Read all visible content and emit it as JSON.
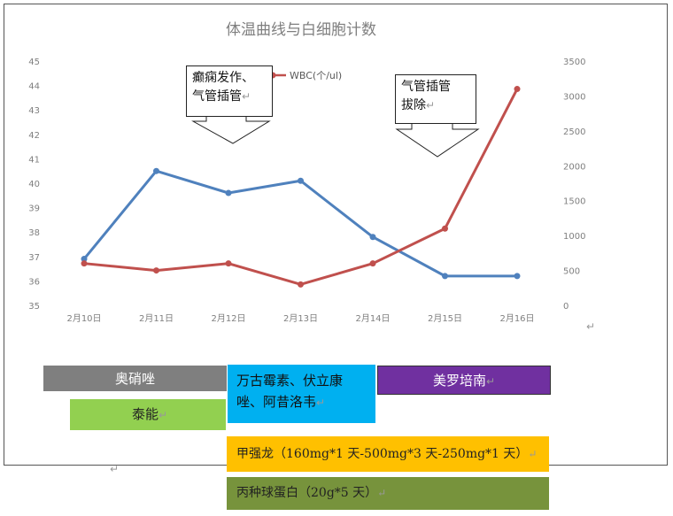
{
  "chart_data": {
    "type": "line",
    "title": "体温曲线与白细胞计数",
    "categories": [
      "2月10日",
      "2月11日",
      "2月12日",
      "2月13日",
      "2月14日",
      "2月15日",
      "2月16日"
    ],
    "y_left": {
      "min": 35,
      "max": 45,
      "ticks": [
        "45",
        "44",
        "43",
        "42",
        "41",
        "40",
        "39",
        "38",
        "37",
        "36",
        "35"
      ]
    },
    "y_right": {
      "min": 0,
      "max": 3500,
      "ticks": [
        "3500",
        "3000",
        "2500",
        "2000",
        "1500",
        "1000",
        "500",
        "0"
      ]
    },
    "series": [
      {
        "name": "",
        "axis": "left",
        "color": "#4f81bd",
        "values": [
          36.9,
          40.5,
          39.6,
          40.1,
          37.8,
          36.2,
          36.2
        ]
      },
      {
        "name": "WBC(个/ul)",
        "axis": "right",
        "color": "#c0504d",
        "values": [
          600,
          500,
          600,
          300,
          600,
          1100,
          3100
        ]
      }
    ],
    "legend_placement": "top",
    "grid": false
  },
  "callouts": [
    {
      "id": "seizure",
      "line1": "癫痫发作、",
      "line2": "气管插管",
      "mark": "↵"
    },
    {
      "id": "extubation",
      "line1": "气管插管",
      "line2": "拔除",
      "mark": "↵"
    }
  ],
  "treatments": [
    {
      "id": "oseltamivir",
      "label": "奥硝唑",
      "color": "#7f7f7f",
      "text_color": "#ffffff"
    },
    {
      "id": "tienam",
      "label": "泰能",
      "mark": "↵",
      "color": "#92d050",
      "text_color": "#222222"
    },
    {
      "id": "antifungal",
      "line1": "万古霉素、伏立康",
      "line2": "唑、阿昔洛韦",
      "mark": "↵",
      "color": "#00b0f0",
      "text_color": "#111111"
    },
    {
      "id": "meropenem",
      "label": "美罗培南",
      "mark": "↵",
      "color": "#7030a0",
      "text_color": "#ffffff"
    },
    {
      "id": "methylpred",
      "label": "甲强龙（160mg*1 天-500mg*3 天-250mg*1 天）",
      "mark": "↵",
      "color": "#ffc000",
      "text_color": "#222222"
    },
    {
      "id": "ivig",
      "label": "丙种球蛋白（20g*5 天）",
      "mark": "↵",
      "color": "#77933c",
      "text_color": "#222222"
    }
  ],
  "return_mark": "↵"
}
